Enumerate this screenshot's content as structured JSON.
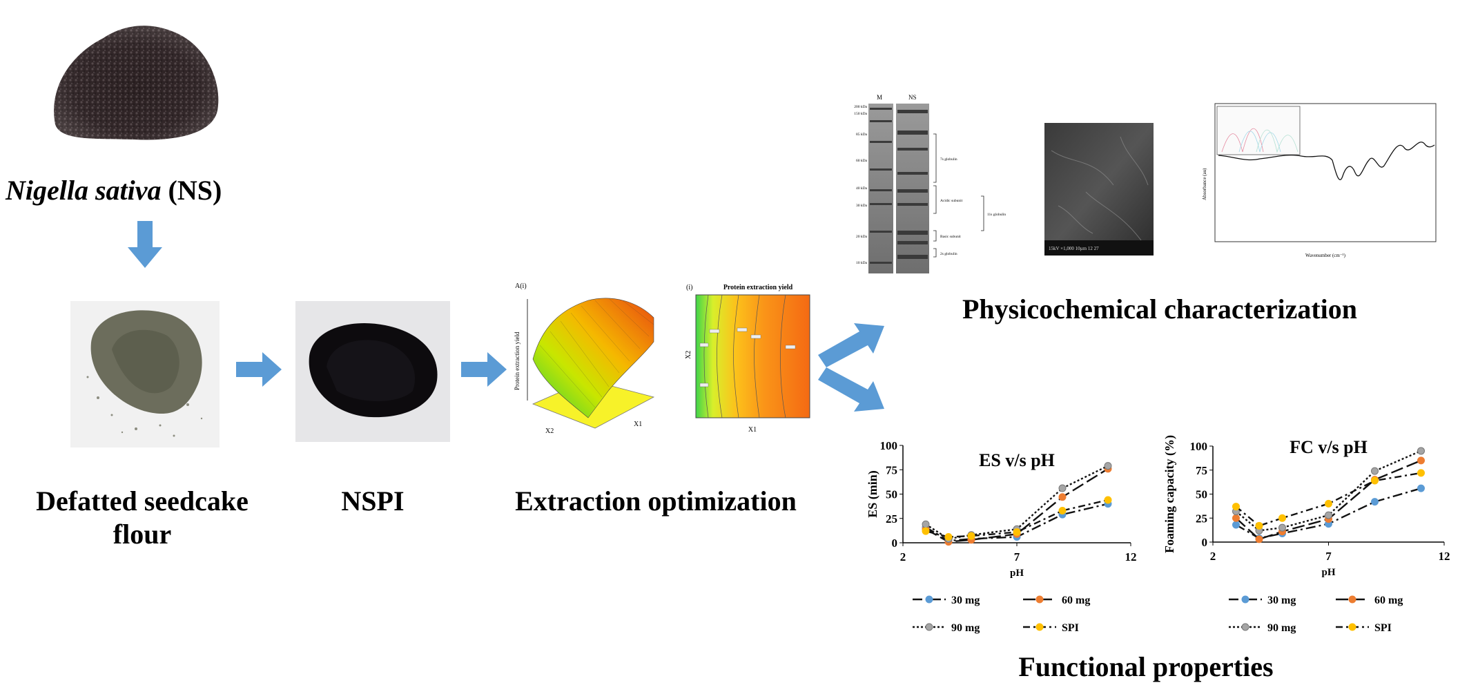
{
  "stages": {
    "source": {
      "title_italic": "Nigella  sativa",
      "title_rest": " (NS)"
    },
    "defatted": {
      "label_line1": "Defatted seedcake",
      "label_line2": "flour"
    },
    "nspi": {
      "label": "NSPI"
    },
    "extraction": {
      "label": "Extraction optimization"
    },
    "physchem": {
      "label": "Physicochemical characterization"
    },
    "functional": {
      "label": "Functional properties"
    }
  },
  "sds_page": {
    "lanes": [
      "M",
      "NS"
    ],
    "markers": [
      "200 kDa",
      "150 kDa",
      "85 kDa",
      "60 kDa",
      "40 kDa",
      "30 kDa",
      "20 kDa",
      "10 kDa"
    ],
    "annotations": [
      "7s globulin",
      "Acidic subunit",
      "Basic subunit",
      "2s globulin",
      "11s globulin"
    ]
  },
  "sem": {
    "scale_text": "15kV   ×1,000   10µm   12 27"
  },
  "ftir": {
    "ylabel": "Absorbance (au)",
    "xlabel": "Wavenumber (cm⁻¹)"
  },
  "rsm": {
    "surface_title": "A(i)",
    "surface_zlabel": "Protein extraction yield",
    "surface_x1": "X1",
    "surface_x2": "X2",
    "contour_title_prefix": "(i)",
    "contour_title": "Protein extraction yield",
    "contour_xlabel": "X1",
    "contour_ylabel": "X2"
  },
  "chart_data": [
    {
      "type": "line",
      "title": "ES v/s pH",
      "xlabel": "pH",
      "ylabel": "ES  (min)",
      "xlim": [
        2,
        12
      ],
      "ylim": [
        0,
        100
      ],
      "xticks": [
        2,
        7,
        12
      ],
      "yticks": [
        0,
        25,
        50,
        75,
        100
      ],
      "x": [
        3,
        4,
        5,
        7,
        9,
        11
      ],
      "series": [
        {
          "name": "30 mg",
          "color": "#5b9bd5",
          "dash": "14,5,3,5",
          "values": [
            16,
            2,
            4,
            6,
            29,
            40
          ]
        },
        {
          "name": "60 mg",
          "color": "#ed7d31",
          "dash": "18,6",
          "values": [
            14,
            1,
            3,
            9,
            47,
            76
          ]
        },
        {
          "name": "90 mg",
          "color": "#a5a5a5",
          "dash": "3,3",
          "values": [
            19,
            4,
            8,
            14,
            56,
            79
          ]
        },
        {
          "name": "SPI",
          "color": "#ffc000",
          "dash": "10,5,3,5",
          "values": [
            12,
            6,
            7,
            11,
            33,
            44
          ]
        }
      ]
    },
    {
      "type": "line",
      "title": "FC v/s pH",
      "xlabel": "pH",
      "ylabel": "Foaming  capacity  (%)",
      "xlim": [
        2,
        12
      ],
      "ylim": [
        0,
        100
      ],
      "xticks": [
        2,
        7,
        12
      ],
      "yticks": [
        0,
        25,
        50,
        75,
        100
      ],
      "x": [
        3,
        4,
        5,
        7,
        9,
        11
      ],
      "series": [
        {
          "name": "30 mg",
          "color": "#5b9bd5",
          "dash": "14,5,3,5",
          "values": [
            18,
            4,
            9,
            19,
            42,
            56
          ]
        },
        {
          "name": "60 mg",
          "color": "#ed7d31",
          "dash": "18,6",
          "values": [
            25,
            3,
            11,
            24,
            65,
            85
          ]
        },
        {
          "name": "90 mg",
          "color": "#a5a5a5",
          "dash": "3,3",
          "values": [
            32,
            12,
            15,
            28,
            74,
            95
          ]
        },
        {
          "name": "SPI",
          "color": "#ffc000",
          "dash": "10,5,3,5",
          "values": [
            37,
            17,
            25,
            40,
            64,
            72
          ]
        }
      ]
    }
  ]
}
